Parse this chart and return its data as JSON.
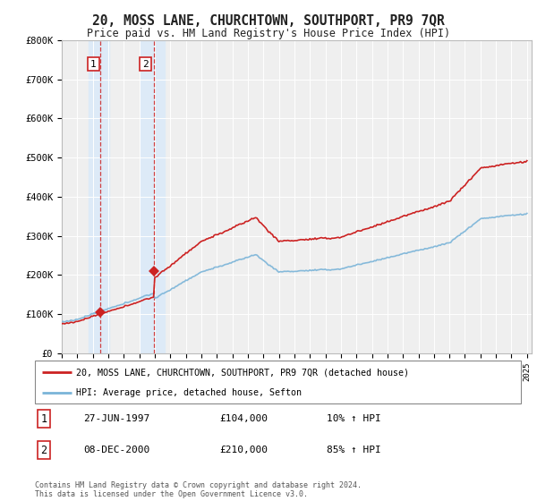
{
  "title": "20, MOSS LANE, CHURCHTOWN, SOUTHPORT, PR9 7QR",
  "subtitle": "Price paid vs. HM Land Registry's House Price Index (HPI)",
  "legend_line1": "20, MOSS LANE, CHURCHTOWN, SOUTHPORT, PR9 7QR (detached house)",
  "legend_line2": "HPI: Average price, detached house, Sefton",
  "transaction1_date": "27-JUN-1997",
  "transaction1_price": 104000,
  "transaction1_hpi": "10% ↑ HPI",
  "transaction2_date": "08-DEC-2000",
  "transaction2_price": 210000,
  "transaction2_hpi": "85% ↑ HPI",
  "footnote": "Contains HM Land Registry data © Crown copyright and database right 2024.\nThis data is licensed under the Open Government Licence v3.0.",
  "hpi_color": "#7ab4d8",
  "property_color": "#cc2222",
  "transaction_color": "#cc2222",
  "background_color": "#ffffff",
  "plot_bg_color": "#efefef",
  "shade_color": "#ddeaf7",
  "ylim": [
    0,
    800000
  ],
  "yticks": [
    0,
    100000,
    200000,
    300000,
    400000,
    500000,
    600000,
    700000,
    800000
  ],
  "ytick_labels": [
    "£0",
    "£100K",
    "£200K",
    "£300K",
    "£400K",
    "£500K",
    "£600K",
    "£700K",
    "£800K"
  ],
  "transaction1_year": 1997.5,
  "transaction2_year": 2000.92,
  "transaction1_price_val": 104000,
  "transaction2_price_val": 210000
}
